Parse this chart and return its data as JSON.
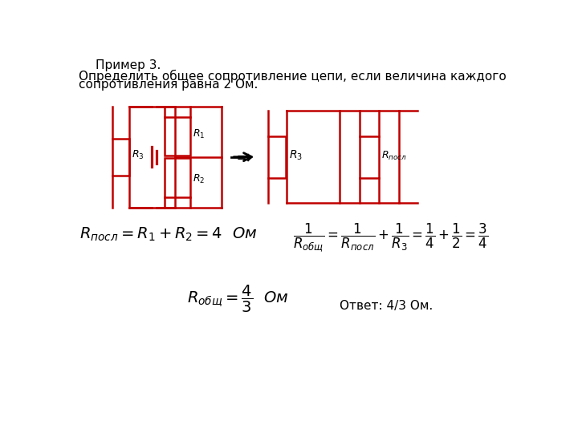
{
  "title": "Пример 3.",
  "problem_line1": "Определить общее сопротивление цепи, если величина каждого",
  "problem_line2": "сопротивления равна 2 Ом.",
  "circuit_color": "#c00000",
  "bg_color": "#ffffff",
  "text_color": "#000000",
  "answer_text": "Ответ: 4/3 Ом."
}
